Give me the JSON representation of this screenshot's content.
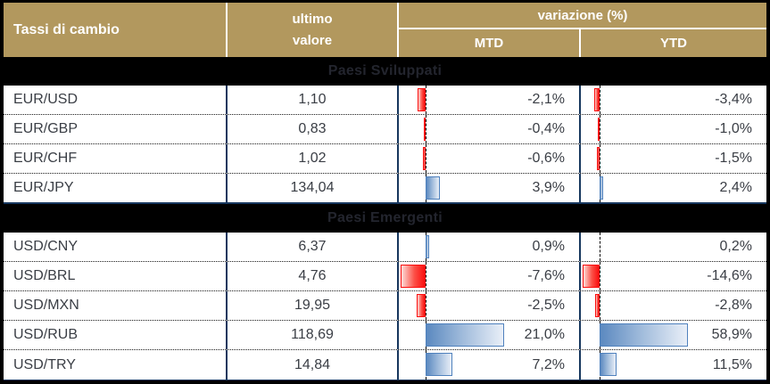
{
  "header": {
    "title": "Tassi di cambio",
    "value_col_line1": "ultimo",
    "value_col_line2": "valore",
    "variation_group": "variazione (%)",
    "mtd_label": "MTD",
    "ytd_label": "YTD"
  },
  "sections": [
    {
      "label": "Paesi Sviluppati",
      "rows": [
        {
          "pair": "EUR/USD",
          "value": "1,10",
          "mtd": "-2,1%",
          "ytd": "-3,4%",
          "mtd_num": -2.1,
          "ytd_num": -3.4
        },
        {
          "pair": "EUR/GBP",
          "value": "0,83",
          "mtd": "-0,4%",
          "ytd": "-1,0%",
          "mtd_num": -0.4,
          "ytd_num": -1.0
        },
        {
          "pair": "EUR/CHF",
          "value": "1,02",
          "mtd": "-0,6%",
          "ytd": "-1,5%",
          "mtd_num": -0.6,
          "ytd_num": -1.5
        },
        {
          "pair": "EUR/JPY",
          "value": "134,04",
          "mtd": "3,9%",
          "ytd": "2,4%",
          "mtd_num": 3.9,
          "ytd_num": 2.4
        }
      ]
    },
    {
      "label": "Paesi Emergenti",
      "rows": [
        {
          "pair": "USD/CNY",
          "value": "6,37",
          "mtd": "0,9%",
          "ytd": "0,2%",
          "mtd_num": 0.9,
          "ytd_num": 0.2
        },
        {
          "pair": "USD/BRL",
          "value": "4,76",
          "mtd": "-7,6%",
          "ytd": "-14,6%",
          "mtd_num": -7.6,
          "ytd_num": -14.6
        },
        {
          "pair": "USD/MXN",
          "value": "19,95",
          "mtd": "-2,5%",
          "ytd": "-2,8%",
          "mtd_num": -2.5,
          "ytd_num": -2.8
        },
        {
          "pair": "USD/RUB",
          "value": "118,69",
          "mtd": "21,0%",
          "ytd": "58,9%",
          "mtd_num": 21.0,
          "ytd_num": 58.9
        },
        {
          "pair": "USD/TRY",
          "value": "14,84",
          "mtd": "7,2%",
          "ytd": "11,5%",
          "mtd_num": 7.2,
          "ytd_num": 11.5
        }
      ]
    }
  ],
  "colors": {
    "header_bg": "#B2985E",
    "separator_navy": "#17375E",
    "positive_bar": "#4F81BD",
    "negative_bar": "#FF0000",
    "band_bg": "#000000"
  },
  "chart_data": {
    "type": "table",
    "title": "Tassi di cambio",
    "columns": [
      "Tassi di cambio",
      "ultimo valore",
      "variazione (%) MTD",
      "variazione (%) YTD"
    ],
    "groups": [
      "Paesi Sviluppati",
      "Paesi Emergenti"
    ],
    "rows": [
      {
        "group": "Paesi Sviluppati",
        "pair": "EUR/USD",
        "last_value": 1.1,
        "mtd_pct": -2.1,
        "ytd_pct": -3.4
      },
      {
        "group": "Paesi Sviluppati",
        "pair": "EUR/GBP",
        "last_value": 0.83,
        "mtd_pct": -0.4,
        "ytd_pct": -1.0
      },
      {
        "group": "Paesi Sviluppati",
        "pair": "EUR/CHF",
        "last_value": 1.02,
        "mtd_pct": -0.6,
        "ytd_pct": -1.5
      },
      {
        "group": "Paesi Sviluppati",
        "pair": "EUR/JPY",
        "last_value": 134.04,
        "mtd_pct": 3.9,
        "ytd_pct": 2.4
      },
      {
        "group": "Paesi Emergenti",
        "pair": "USD/CNY",
        "last_value": 6.37,
        "mtd_pct": 0.9,
        "ytd_pct": 0.2
      },
      {
        "group": "Paesi Emergenti",
        "pair": "USD/BRL",
        "last_value": 4.76,
        "mtd_pct": -7.6,
        "ytd_pct": -14.6
      },
      {
        "group": "Paesi Emergenti",
        "pair": "USD/MXN",
        "last_value": 19.95,
        "mtd_pct": -2.5,
        "ytd_pct": -2.8
      },
      {
        "group": "Paesi Emergenti",
        "pair": "USD/RUB",
        "last_value": 118.69,
        "mtd_pct": 21.0,
        "ytd_pct": 58.9
      },
      {
        "group": "Paesi Emergenti",
        "pair": "USD/TRY",
        "last_value": 14.84,
        "mtd_pct": 7.2,
        "ytd_pct": 11.5
      }
    ],
    "bar_style": "excel-data-bars, negative red left of dashed zero axis, positive blue right of axis"
  }
}
